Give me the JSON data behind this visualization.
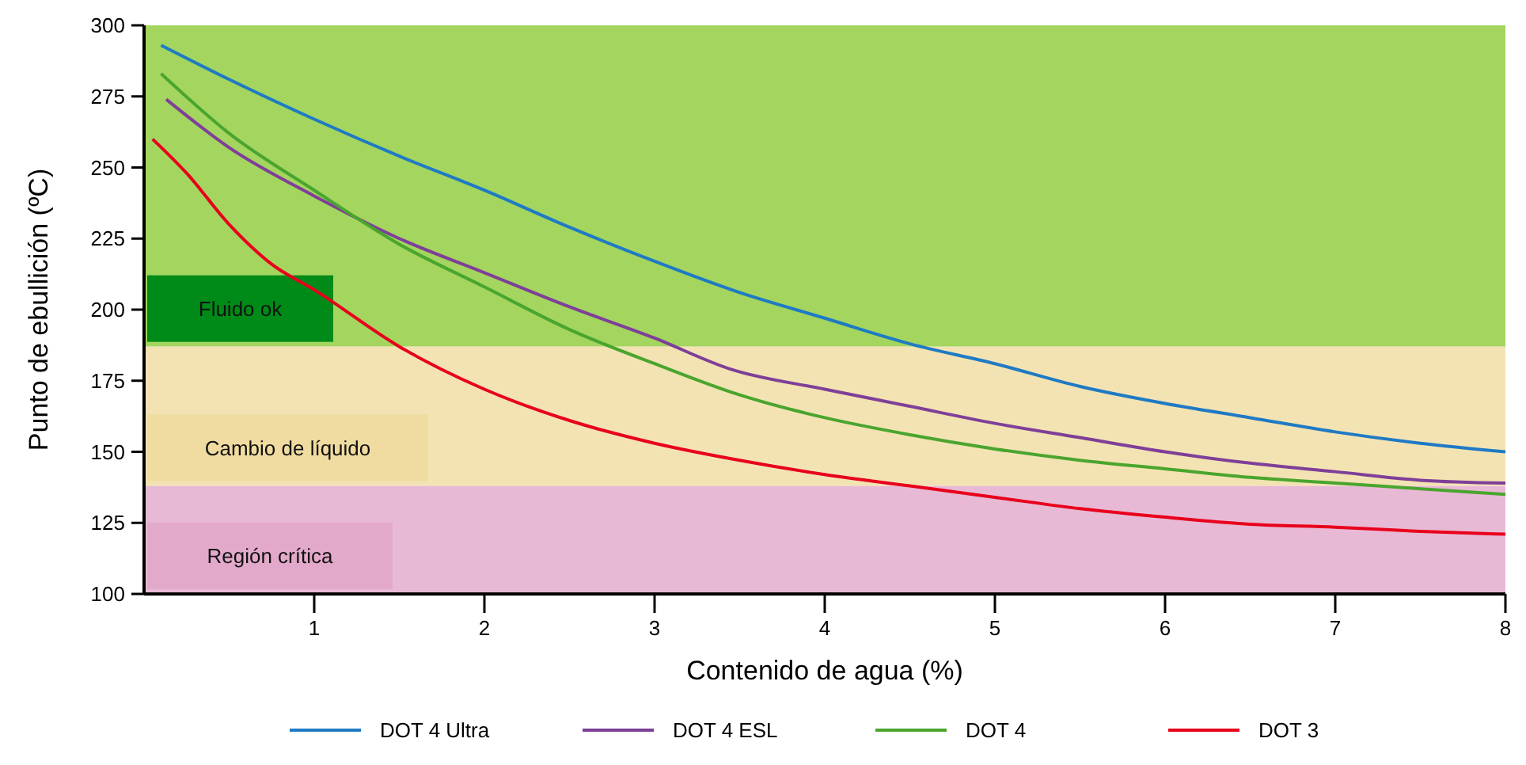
{
  "chart_data": {
    "type": "line",
    "xlabel": "Contenido de agua (%)",
    "ylabel": "Punto de ebullición (ºC)",
    "xlim": [
      0,
      8
    ],
    "xticks": [
      1,
      2,
      3,
      4,
      5,
      6,
      7,
      8
    ],
    "ylim": [
      100,
      300
    ],
    "yticks": [
      100,
      125,
      150,
      175,
      200,
      225,
      250,
      275,
      300
    ],
    "legend": "bottom",
    "grid": false,
    "bands": [
      {
        "axis": "y",
        "from": 187,
        "to": 300,
        "label": "Fluido ok",
        "color": "#a3d55f"
      },
      {
        "axis": "y",
        "from": 138,
        "to": 187,
        "label": "Cambio de líquido",
        "color": "#f3e3b3"
      },
      {
        "axis": "y",
        "from": 100,
        "to": 138,
        "label": "Región crítica",
        "color": "#e8b9d5"
      }
    ],
    "series": [
      {
        "name": "DOT 4 Ultra",
        "color": "#1f7ac4",
        "x": [
          0.1,
          0.5,
          1,
          1.5,
          2,
          2.5,
          3,
          3.5,
          4,
          4.5,
          5,
          5.5,
          6,
          6.5,
          7,
          7.5,
          8
        ],
        "values": [
          293,
          281,
          267,
          254,
          242,
          229,
          217,
          206,
          197,
          188,
          181,
          173,
          167,
          162,
          157,
          153,
          150
        ]
      },
      {
        "name": "DOT 4 ESL",
        "color": "#7f3f98",
        "x": [
          0.13,
          0.5,
          1,
          1.5,
          2,
          2.5,
          3,
          3.45,
          4,
          4.5,
          5,
          5.5,
          6,
          6.5,
          7,
          7.5,
          8
        ],
        "values": [
          274,
          257,
          240,
          225,
          213,
          201,
          190,
          179,
          172,
          166,
          160,
          155,
          150,
          146,
          143,
          140,
          139
        ]
      },
      {
        "name": "DOT 4",
        "color": "#4aa52e",
        "x": [
          0.1,
          0.5,
          1,
          1.5,
          2,
          2.5,
          3,
          3.5,
          4,
          4.5,
          5,
          5.5,
          6,
          6.5,
          7,
          7.5,
          8
        ],
        "values": [
          283,
          262,
          242,
          223,
          208,
          193,
          181,
          170,
          162,
          156,
          151,
          147,
          144,
          141,
          139,
          137,
          135
        ]
      },
      {
        "name": "DOT 3",
        "color": "#e8001c",
        "x": [
          0.05,
          0.25,
          0.5,
          0.75,
          1,
          1.5,
          2,
          2.5,
          3,
          3.5,
          4,
          4.5,
          5,
          5.5,
          6,
          6.5,
          7,
          7.5,
          8
        ],
        "values": [
          260,
          248,
          230,
          216,
          207,
          187,
          172,
          161,
          153,
          147,
          142,
          138,
          134,
          130,
          127,
          124.5,
          123.5,
          122,
          121
        ]
      }
    ]
  }
}
